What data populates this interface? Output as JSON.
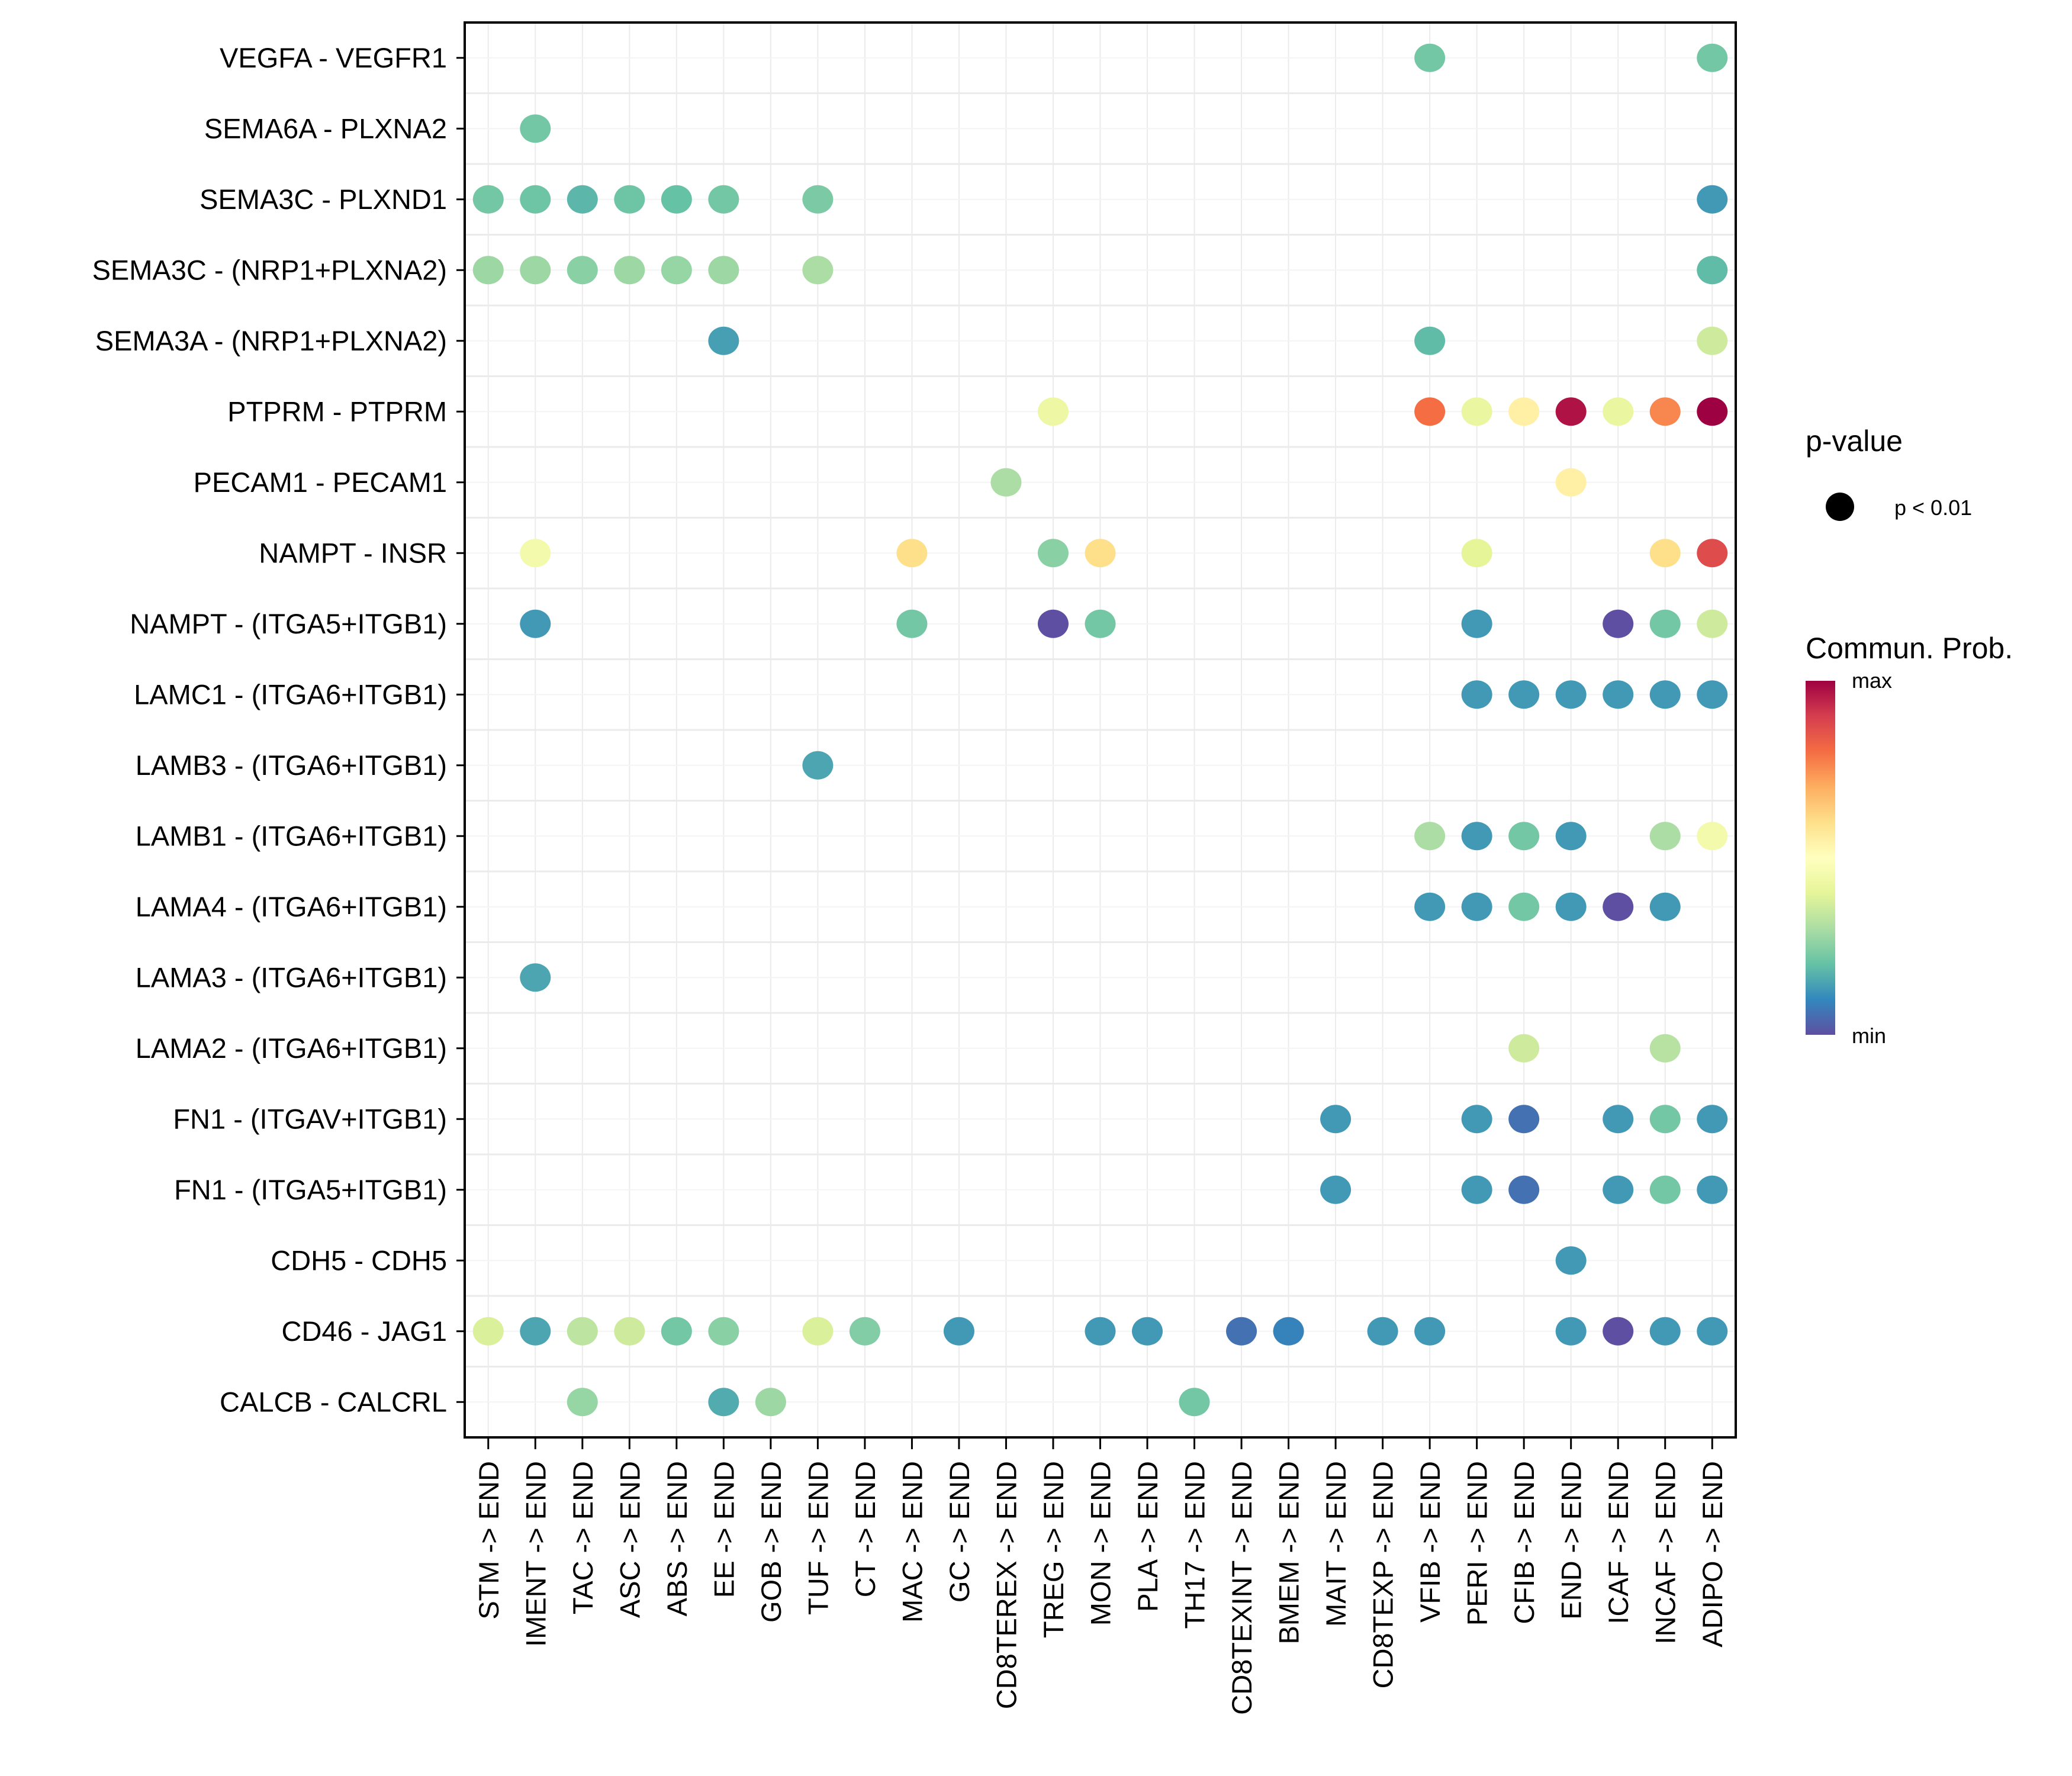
{
  "chart_data": {
    "type": "scatter",
    "subtype": "dot-plot",
    "title": "",
    "xlabel": "",
    "ylabel": "",
    "grid": true,
    "x_categories": [
      "STM -> END",
      "IMENT -> END",
      "TAC -> END",
      "ASC -> END",
      "ABS -> END",
      "EE -> END",
      "GOB -> END",
      "TUF -> END",
      "CT -> END",
      "MAC -> END",
      "GC -> END",
      "CD8TEREX -> END",
      "TREG -> END",
      "MON -> END",
      "PLA -> END",
      "TH17 -> END",
      "CD8TEXINT -> END",
      "BMEM -> END",
      "MAIT -> END",
      "CD8TEXP -> END",
      "VFIB -> END",
      "PERI -> END",
      "CFIB -> END",
      "END -> END",
      "ICAF -> END",
      "INCAF -> END",
      "ADIPO -> END"
    ],
    "y_categories": [
      "VEGFA - VEGFR1",
      "SEMA6A - PLXNA2",
      "SEMA3C - PLXND1",
      "SEMA3C - (NRP1+PLXNA2)",
      "SEMA3A - (NRP1+PLXNA2)",
      "PTPRM - PTPRM",
      "PECAM1 - PECAM1",
      "NAMPT - INSR",
      "NAMPT - (ITGA5+ITGB1)",
      "LAMC1 - (ITGA6+ITGB1)",
      "LAMB3 - (ITGA6+ITGB1)",
      "LAMB1 - (ITGA6+ITGB1)",
      "LAMA4 - (ITGA6+ITGB1)",
      "LAMA3 - (ITGA6+ITGB1)",
      "LAMA2 - (ITGA6+ITGB1)",
      "FN1 - (ITGAV+ITGB1)",
      "FN1 - (ITGA5+ITGB1)",
      "CDH5 - CDH5",
      "CD46 - JAG1",
      "CALCB - CALCRL"
    ],
    "value_scale": {
      "min_label": "min",
      "max_label": "max",
      "note": "relative communication probability, 0 = min, 1 = max"
    },
    "colormap": [
      "#5E4FA2",
      "#3288BD",
      "#66C2A5",
      "#ABDDA4",
      "#E6F598",
      "#FFFFBF",
      "#FEE08B",
      "#FDAE61",
      "#F46D43",
      "#D53E4F",
      "#9E0142"
    ],
    "points": [
      {
        "y": "VEGFA - VEGFR1",
        "x": "VFIB -> END",
        "v": 0.22
      },
      {
        "y": "VEGFA - VEGFR1",
        "x": "ADIPO -> END",
        "v": 0.22
      },
      {
        "y": "SEMA6A - PLXNA2",
        "x": "IMENT -> END",
        "v": 0.22
      },
      {
        "y": "SEMA3C - PLXND1",
        "x": "STM -> END",
        "v": 0.22
      },
      {
        "y": "SEMA3C - PLXND1",
        "x": "IMENT -> END",
        "v": 0.21
      },
      {
        "y": "SEMA3C - PLXND1",
        "x": "TAC -> END",
        "v": 0.18
      },
      {
        "y": "SEMA3C - PLXND1",
        "x": "ASC -> END",
        "v": 0.21
      },
      {
        "y": "SEMA3C - PLXND1",
        "x": "ABS -> END",
        "v": 0.2
      },
      {
        "y": "SEMA3C - PLXND1",
        "x": "EE -> END",
        "v": 0.22
      },
      {
        "y": "SEMA3C - PLXND1",
        "x": "TUF -> END",
        "v": 0.23
      },
      {
        "y": "SEMA3C - PLXND1",
        "x": "ADIPO -> END",
        "v": 0.13
      },
      {
        "y": "SEMA3C - (NRP1+PLXNA2)",
        "x": "STM -> END",
        "v": 0.28
      },
      {
        "y": "SEMA3C - (NRP1+PLXNA2)",
        "x": "IMENT -> END",
        "v": 0.28
      },
      {
        "y": "SEMA3C - (NRP1+PLXNA2)",
        "x": "TAC -> END",
        "v": 0.25
      },
      {
        "y": "SEMA3C - (NRP1+PLXNA2)",
        "x": "ASC -> END",
        "v": 0.28
      },
      {
        "y": "SEMA3C - (NRP1+PLXNA2)",
        "x": "ABS -> END",
        "v": 0.27
      },
      {
        "y": "SEMA3C - (NRP1+PLXNA2)",
        "x": "EE -> END",
        "v": 0.28
      },
      {
        "y": "SEMA3C - (NRP1+PLXNA2)",
        "x": "TUF -> END",
        "v": 0.3
      },
      {
        "y": "SEMA3C - (NRP1+PLXNA2)",
        "x": "ADIPO -> END",
        "v": 0.19
      },
      {
        "y": "SEMA3A - (NRP1+PLXNA2)",
        "x": "EE -> END",
        "v": 0.14
      },
      {
        "y": "SEMA3A - (NRP1+PLXNA2)",
        "x": "VFIB -> END",
        "v": 0.19
      },
      {
        "y": "SEMA3A - (NRP1+PLXNA2)",
        "x": "ADIPO -> END",
        "v": 0.36
      },
      {
        "y": "PTPRM - PTPRM",
        "x": "TREG -> END",
        "v": 0.43
      },
      {
        "y": "PTPRM - PTPRM",
        "x": "VFIB -> END",
        "v": 0.8
      },
      {
        "y": "PTPRM - PTPRM",
        "x": "PERI -> END",
        "v": 0.42
      },
      {
        "y": "PTPRM - PTPRM",
        "x": "CFIB -> END",
        "v": 0.55
      },
      {
        "y": "PTPRM - PTPRM",
        "x": "END -> END",
        "v": 0.97
      },
      {
        "y": "PTPRM - PTPRM",
        "x": "ICAF -> END",
        "v": 0.42
      },
      {
        "y": "PTPRM - PTPRM",
        "x": "INCAF -> END",
        "v": 0.76
      },
      {
        "y": "PTPRM - PTPRM",
        "x": "ADIPO -> END",
        "v": 1.0
      },
      {
        "y": "PECAM1 - PECAM1",
        "x": "CD8TEREX -> END",
        "v": 0.3
      },
      {
        "y": "PECAM1 - PECAM1",
        "x": "END -> END",
        "v": 0.55
      },
      {
        "y": "NAMPT - INSR",
        "x": "IMENT -> END",
        "v": 0.45
      },
      {
        "y": "NAMPT - INSR",
        "x": "MAC -> END",
        "v": 0.6
      },
      {
        "y": "NAMPT - INSR",
        "x": "TREG -> END",
        "v": 0.25
      },
      {
        "y": "NAMPT - INSR",
        "x": "MON -> END",
        "v": 0.6
      },
      {
        "y": "NAMPT - INSR",
        "x": "PERI -> END",
        "v": 0.4
      },
      {
        "y": "NAMPT - INSR",
        "x": "INCAF -> END",
        "v": 0.6
      },
      {
        "y": "NAMPT - INSR",
        "x": "ADIPO -> END",
        "v": 0.87
      },
      {
        "y": "NAMPT - (ITGA5+ITGB1)",
        "x": "IMENT -> END",
        "v": 0.13
      },
      {
        "y": "NAMPT - (ITGA5+ITGB1)",
        "x": "MAC -> END",
        "v": 0.22
      },
      {
        "y": "NAMPT - (ITGA5+ITGB1)",
        "x": "TREG -> END",
        "v": 0.0
      },
      {
        "y": "NAMPT - (ITGA5+ITGB1)",
        "x": "MON -> END",
        "v": 0.22
      },
      {
        "y": "NAMPT - (ITGA5+ITGB1)",
        "x": "PERI -> END",
        "v": 0.13
      },
      {
        "y": "NAMPT - (ITGA5+ITGB1)",
        "x": "ICAF -> END",
        "v": 0.0
      },
      {
        "y": "NAMPT - (ITGA5+ITGB1)",
        "x": "INCAF -> END",
        "v": 0.22
      },
      {
        "y": "NAMPT - (ITGA5+ITGB1)",
        "x": "ADIPO -> END",
        "v": 0.36
      },
      {
        "y": "LAMC1 - (ITGA6+ITGB1)",
        "x": "PERI -> END",
        "v": 0.13
      },
      {
        "y": "LAMC1 - (ITGA6+ITGB1)",
        "x": "CFIB -> END",
        "v": 0.13
      },
      {
        "y": "LAMC1 - (ITGA6+ITGB1)",
        "x": "END -> END",
        "v": 0.13
      },
      {
        "y": "LAMC1 - (ITGA6+ITGB1)",
        "x": "ICAF -> END",
        "v": 0.13
      },
      {
        "y": "LAMC1 - (ITGA6+ITGB1)",
        "x": "INCAF -> END",
        "v": 0.13
      },
      {
        "y": "LAMC1 - (ITGA6+ITGB1)",
        "x": "ADIPO -> END",
        "v": 0.13
      },
      {
        "y": "LAMB3 - (ITGA6+ITGB1)",
        "x": "TUF -> END",
        "v": 0.15
      },
      {
        "y": "LAMB1 - (ITGA6+ITGB1)",
        "x": "VFIB -> END",
        "v": 0.3
      },
      {
        "y": "LAMB1 - (ITGA6+ITGB1)",
        "x": "PERI -> END",
        "v": 0.13
      },
      {
        "y": "LAMB1 - (ITGA6+ITGB1)",
        "x": "CFIB -> END",
        "v": 0.22
      },
      {
        "y": "LAMB1 - (ITGA6+ITGB1)",
        "x": "END -> END",
        "v": 0.13
      },
      {
        "y": "LAMB1 - (ITGA6+ITGB1)",
        "x": "INCAF -> END",
        "v": 0.3
      },
      {
        "y": "LAMB1 - (ITGA6+ITGB1)",
        "x": "ADIPO -> END",
        "v": 0.45
      },
      {
        "y": "LAMA4 - (ITGA6+ITGB1)",
        "x": "VFIB -> END",
        "v": 0.13
      },
      {
        "y": "LAMA4 - (ITGA6+ITGB1)",
        "x": "PERI -> END",
        "v": 0.13
      },
      {
        "y": "LAMA4 - (ITGA6+ITGB1)",
        "x": "CFIB -> END",
        "v": 0.22
      },
      {
        "y": "LAMA4 - (ITGA6+ITGB1)",
        "x": "END -> END",
        "v": 0.13
      },
      {
        "y": "LAMA4 - (ITGA6+ITGB1)",
        "x": "ICAF -> END",
        "v": 0.0
      },
      {
        "y": "LAMA4 - (ITGA6+ITGB1)",
        "x": "INCAF -> END",
        "v": 0.13
      },
      {
        "y": "LAMA3 - (ITGA6+ITGB1)",
        "x": "IMENT -> END",
        "v": 0.15
      },
      {
        "y": "LAMA2 - (ITGA6+ITGB1)",
        "x": "CFIB -> END",
        "v": 0.36
      },
      {
        "y": "LAMA2 - (ITGA6+ITGB1)",
        "x": "INCAF -> END",
        "v": 0.32
      },
      {
        "y": "FN1 - (ITGAV+ITGB1)",
        "x": "MAIT -> END",
        "v": 0.13
      },
      {
        "y": "FN1 - (ITGAV+ITGB1)",
        "x": "PERI -> END",
        "v": 0.13
      },
      {
        "y": "FN1 - (ITGAV+ITGB1)",
        "x": "CFIB -> END",
        "v": 0.06
      },
      {
        "y": "FN1 - (ITGAV+ITGB1)",
        "x": "ICAF -> END",
        "v": 0.13
      },
      {
        "y": "FN1 - (ITGAV+ITGB1)",
        "x": "INCAF -> END",
        "v": 0.22
      },
      {
        "y": "FN1 - (ITGAV+ITGB1)",
        "x": "ADIPO -> END",
        "v": 0.13
      },
      {
        "y": "FN1 - (ITGA5+ITGB1)",
        "x": "MAIT -> END",
        "v": 0.13
      },
      {
        "y": "FN1 - (ITGA5+ITGB1)",
        "x": "PERI -> END",
        "v": 0.13
      },
      {
        "y": "FN1 - (ITGA5+ITGB1)",
        "x": "CFIB -> END",
        "v": 0.06
      },
      {
        "y": "FN1 - (ITGA5+ITGB1)",
        "x": "ICAF -> END",
        "v": 0.13
      },
      {
        "y": "FN1 - (ITGA5+ITGB1)",
        "x": "INCAF -> END",
        "v": 0.22
      },
      {
        "y": "FN1 - (ITGA5+ITGB1)",
        "x": "ADIPO -> END",
        "v": 0.13
      },
      {
        "y": "CDH5 - CDH5",
        "x": "END -> END",
        "v": 0.13
      },
      {
        "y": "CD46 - JAG1",
        "x": "STM -> END",
        "v": 0.38
      },
      {
        "y": "CD46 - JAG1",
        "x": "IMENT -> END",
        "v": 0.15
      },
      {
        "y": "CD46 - JAG1",
        "x": "TAC -> END",
        "v": 0.33
      },
      {
        "y": "CD46 - JAG1",
        "x": "ASC -> END",
        "v": 0.36
      },
      {
        "y": "CD46 - JAG1",
        "x": "ABS -> END",
        "v": 0.22
      },
      {
        "y": "CD46 - JAG1",
        "x": "EE -> END",
        "v": 0.25
      },
      {
        "y": "CD46 - JAG1",
        "x": "TUF -> END",
        "v": 0.38
      },
      {
        "y": "CD46 - JAG1",
        "x": "CT -> END",
        "v": 0.24
      },
      {
        "y": "CD46 - JAG1",
        "x": "GC -> END",
        "v": 0.13
      },
      {
        "y": "CD46 - JAG1",
        "x": "MON -> END",
        "v": 0.13
      },
      {
        "y": "CD46 - JAG1",
        "x": "PLA -> END",
        "v": 0.13
      },
      {
        "y": "CD46 - JAG1",
        "x": "CD8TEXINT -> END",
        "v": 0.06
      },
      {
        "y": "CD46 - JAG1",
        "x": "BMEM -> END",
        "v": 0.09
      },
      {
        "y": "CD46 - JAG1",
        "x": "CD8TEXP -> END",
        "v": 0.13
      },
      {
        "y": "CD46 - JAG1",
        "x": "VFIB -> END",
        "v": 0.13
      },
      {
        "y": "CD46 - JAG1",
        "x": "END -> END",
        "v": 0.13
      },
      {
        "y": "CD46 - JAG1",
        "x": "ICAF -> END",
        "v": 0.0
      },
      {
        "y": "CD46 - JAG1",
        "x": "INCAF -> END",
        "v": 0.13
      },
      {
        "y": "CD46 - JAG1",
        "x": "ADIPO -> END",
        "v": 0.13
      },
      {
        "y": "CALCB - CALCRL",
        "x": "TAC -> END",
        "v": 0.27
      },
      {
        "y": "CALCB - CALCRL",
        "x": "EE -> END",
        "v": 0.16
      },
      {
        "y": "CALCB - CALCRL",
        "x": "GOB -> END",
        "v": 0.28
      },
      {
        "y": "CALCB - CALCRL",
        "x": "TH17 -> END",
        "v": 0.22
      }
    ],
    "legend": {
      "position": "right",
      "size_title": "p-value",
      "size_entries": [
        {
          "label": "p < 0.01"
        }
      ],
      "color_title": "Commun. Prob.",
      "color_max_label": "max",
      "color_min_label": "min"
    }
  }
}
